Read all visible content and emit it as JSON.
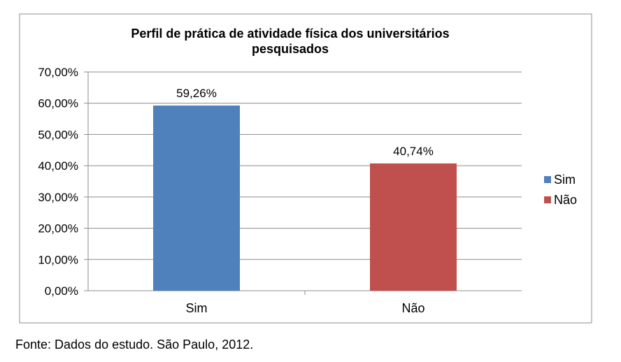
{
  "chart_data": {
    "type": "bar",
    "title_lines": [
      "Perfil de prática de atividade física dos universitários",
      "pesquisados"
    ],
    "categories": [
      "Sim",
      "Não"
    ],
    "series": [
      {
        "name": "Sim",
        "color": "#4F81BD",
        "values": [
          59.26,
          null
        ]
      },
      {
        "name": "Não",
        "color": "#C0504D",
        "values": [
          null,
          40.74
        ]
      }
    ],
    "values": [
      59.26,
      40.74
    ],
    "data_labels": [
      "59,26%",
      "40,74%"
    ],
    "bar_colors": [
      "#4F81BD",
      "#C0504D"
    ],
    "ylim": [
      0,
      70
    ],
    "ytick_values": [
      0,
      10,
      20,
      30,
      40,
      50,
      60,
      70
    ],
    "ytick_labels": [
      "0,00%",
      "10,00%",
      "20,00%",
      "30,00%",
      "40,00%",
      "50,00%",
      "60,00%",
      "70,00%"
    ],
    "xlabel": "",
    "ylabel": "",
    "grid": true,
    "legend": {
      "placement": "right",
      "entries": [
        {
          "label": "Sim",
          "color": "#4F81BD"
        },
        {
          "label": "Não",
          "color": "#C0504D"
        }
      ]
    }
  },
  "source_note": "Fonte: Dados do estudo. São Paulo, 2012."
}
